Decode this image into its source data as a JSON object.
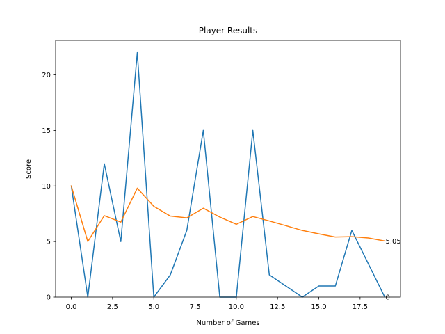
{
  "chart_data": {
    "type": "line",
    "title": "Player Results",
    "xlabel": "Number of Games",
    "ylabel": "Score",
    "xlim": [
      -0.95,
      19.95
    ],
    "ylim": [
      0,
      23.1
    ],
    "xticks": [
      0.0,
      2.5,
      5.0,
      7.5,
      10.0,
      12.5,
      15.0,
      17.5
    ],
    "xtick_labels": [
      "0.0",
      "2.5",
      "5.0",
      "7.5",
      "10.0",
      "12.5",
      "15.0",
      "17.5"
    ],
    "yticks": [
      0,
      5,
      10,
      15,
      20
    ],
    "ytick_labels": [
      "0",
      "5",
      "10",
      "15",
      "20"
    ],
    "grid": false,
    "series": [
      {
        "color": "#1f77b4",
        "x": [
          0,
          1,
          2,
          3,
          4,
          5,
          6,
          7,
          8,
          9,
          10,
          11,
          12,
          13,
          14,
          15,
          16,
          17,
          18,
          19
        ],
        "y": [
          10,
          0,
          12,
          5,
          22,
          0,
          2,
          6,
          15,
          0,
          0,
          15,
          2,
          1,
          0,
          1,
          1,
          6,
          3,
          0
        ]
      },
      {
        "color": "#ff7f0e",
        "x": [
          0,
          1,
          2,
          3,
          4,
          5,
          6,
          7,
          8,
          9,
          10,
          11,
          12,
          13,
          14,
          15,
          16,
          17,
          18,
          19
        ],
        "y": [
          10,
          5,
          7.33,
          6.75,
          9.8,
          8.17,
          7.29,
          7.13,
          8,
          7.2,
          6.55,
          7.25,
          6.85,
          6.43,
          6,
          5.69,
          5.41,
          5.44,
          5.32,
          5.05
        ]
      }
    ],
    "annotations": [
      {
        "x": 19,
        "y": 5.05,
        "text": "5.05"
      },
      {
        "x": 19,
        "y": 0,
        "text": "0"
      }
    ]
  }
}
